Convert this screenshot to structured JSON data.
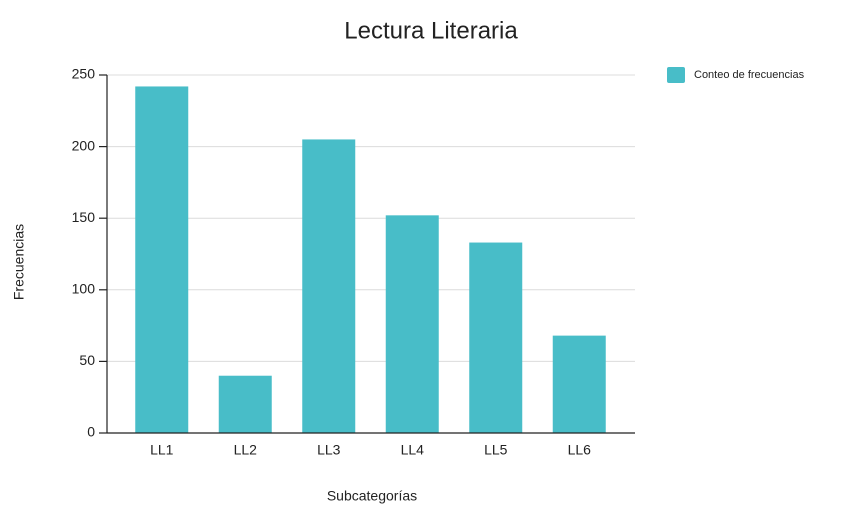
{
  "chart_data": {
    "type": "bar",
    "title": "Lectura Literaria",
    "x_label": "Subcategorías",
    "y_label": "Frecuencias",
    "categories": [
      "LL1",
      "LL2",
      "LL3",
      "LL4",
      "LL5",
      "LL6"
    ],
    "series": [
      {
        "name": "Conteo de frecuencias",
        "color": "#48bdc8",
        "values": [
          242,
          40,
          205,
          152,
          133,
          68
        ]
      }
    ],
    "ylim": [
      0,
      250
    ],
    "yticks": [
      0,
      50,
      100,
      150,
      200,
      250
    ],
    "grid": true,
    "legend": "right"
  }
}
